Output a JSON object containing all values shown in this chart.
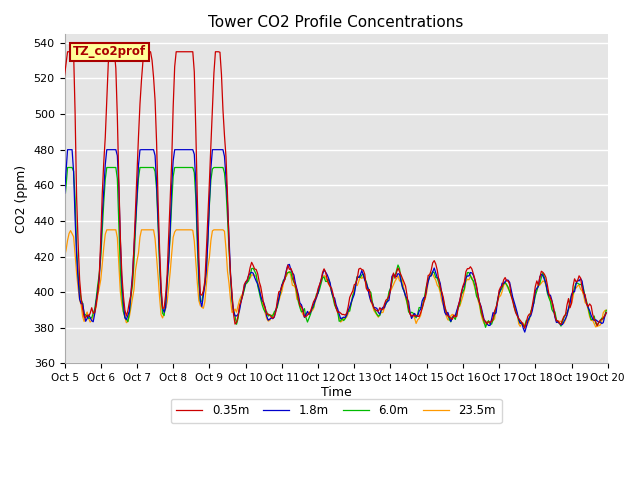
{
  "title": "Tower CO2 Profile Concentrations",
  "ylabel": "CO2 (ppm)",
  "xlabel": "Time",
  "ylim": [
    360,
    545
  ],
  "xlim": [
    0,
    360
  ],
  "annotation": "TZ_co2prof",
  "annotation_color": "#aa0000",
  "annotation_bg": "#ffff99",
  "bg_color": "#e5e5e5",
  "grid_color": "#ffffff",
  "series": {
    "0.35m": {
      "color": "#cc0000",
      "lw": 0.9
    },
    "1.8m": {
      "color": "#0000cc",
      "lw": 0.9
    },
    "6.0m": {
      "color": "#00bb00",
      "lw": 0.9
    },
    "23.5m": {
      "color": "#ff9900",
      "lw": 0.9
    }
  },
  "xtick_labels": [
    "Oct 5",
    "Oct 6",
    "Oct 7",
    "Oct 8",
    "Oct 9",
    "Oct 10",
    "Oct 11",
    "Oct 12",
    "Oct 13",
    "Oct 14",
    "Oct 15",
    "Oct 16",
    "Oct 17",
    "Oct 18",
    "Oct 19",
    "Oct 20"
  ],
  "xtick_positions": [
    0,
    24,
    48,
    72,
    96,
    120,
    144,
    168,
    192,
    216,
    240,
    264,
    288,
    312,
    336,
    360
  ],
  "ytick_labels": [
    "360",
    "380",
    "400",
    "420",
    "440",
    "460",
    "480",
    "500",
    "520",
    "540"
  ],
  "ytick_values": [
    360,
    380,
    400,
    420,
    440,
    460,
    480,
    500,
    520,
    540
  ]
}
